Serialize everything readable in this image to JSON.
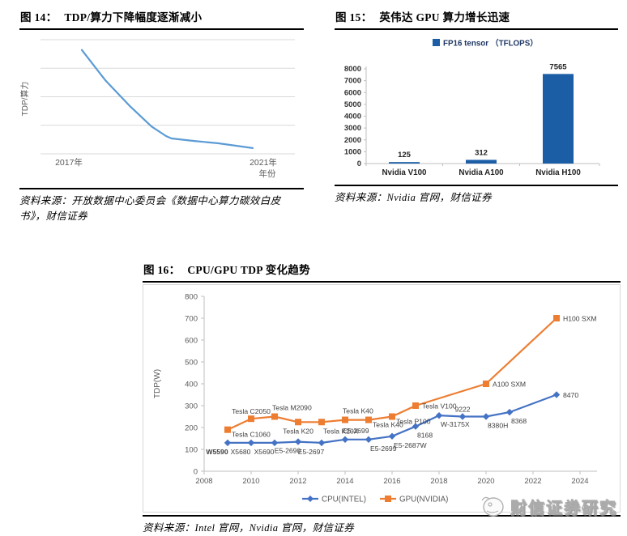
{
  "figures": [
    {
      "id": "fig14",
      "label": "图 14：",
      "title": "TDP/算力下降幅度逐渐减小",
      "source": "资料来源：开放数据中心委员会《数据中心算力碳效白皮书》，财信证券"
    },
    {
      "id": "fig15",
      "label": "图 15：",
      "title": "英伟达 GPU 算力增长迅速",
      "source": "资料来源：Nvidia 官网，财信证券"
    },
    {
      "id": "fig16",
      "label": "图 16：",
      "title": "CPU/GPU TDP 变化趋势",
      "source": "资料来源：Intel 官网，Nvidia 官网，财信证券"
    }
  ],
  "watermark": {
    "text": "财信证券研究"
  },
  "chart_data": [
    {
      "figure": "fig14",
      "type": "line",
      "title": "TDP/算力下降幅度逐渐减小",
      "ylabel": "TDP/算力",
      "xlabel": "年份",
      "x_tick_labels": [
        "2017年",
        "2021年"
      ],
      "x_range": [
        2017,
        2021
      ],
      "y_relative_range": [
        0,
        1
      ],
      "grid": true,
      "line_color": "#5B9BD5",
      "grid_color": "#d9d9d9",
      "points": [
        [
          2017,
          0.91
        ],
        [
          2017.55,
          0.645
        ],
        [
          2018.12,
          0.42
        ],
        [
          2018.63,
          0.24
        ],
        [
          2018.97,
          0.156
        ],
        [
          2019.1,
          0.135
        ],
        [
          2019.63,
          0.113
        ],
        [
          2020.2,
          0.092
        ],
        [
          2021,
          0.05
        ]
      ]
    },
    {
      "figure": "fig15",
      "type": "bar",
      "title": "英伟达 GPU 算力增长迅速",
      "legend": "FP16 tensor （TFLOPS）",
      "legend_position": "top",
      "categories": [
        "Nvidia V100",
        "Nvidia A100",
        "Nvidia H100"
      ],
      "values": [
        125,
        312,
        7565
      ],
      "ylim": [
        0,
        8000
      ],
      "y_tick_step": 1000,
      "grid": false,
      "bar_color": "#1B5EA6",
      "legend_text_color": "#1F3864",
      "axis_color": "#bfbfbf"
    },
    {
      "figure": "fig16",
      "type": "line",
      "title": "CPU/GPU TDP 变化趋势",
      "ylabel": "TDP(W)",
      "ylim": [
        0,
        800
      ],
      "y_tick_step": 100,
      "xlim": [
        2008,
        2024
      ],
      "x_tick_step": 2,
      "grid": false,
      "legend_position": "bottom",
      "axis_color": "#bfbfbf",
      "series": [
        {
          "name": "CPU(INTEL)",
          "color": "#4472C4",
          "marker": "diamond",
          "points": [
            {
              "x": 2009,
              "y": 130,
              "label": "W5590",
              "pos": "below-left",
              "bold": true
            },
            {
              "x": 2010,
              "y": 130,
              "label": "X5680",
              "pos": "below-left"
            },
            {
              "x": 2011,
              "y": 130,
              "label": "X5690",
              "pos": "below-left"
            },
            {
              "x": 2012,
              "y": 135,
              "label": "E5-2690",
              "pos": "below-left"
            },
            {
              "x": 2013,
              "y": 130,
              "label": "E5-2697",
              "pos": "below-left"
            },
            {
              "x": 2014,
              "y": 145,
              "label": "E5-2699",
              "pos": "above-right"
            },
            {
              "x": 2015,
              "y": 145,
              "label": "E5-2699",
              "pos": "below-right"
            },
            {
              "x": 2016,
              "y": 160,
              "label": "E5-2687W",
              "pos": "below-right"
            },
            {
              "x": 2017,
              "y": 205,
              "label": "8168",
              "pos": "below-right"
            },
            {
              "x": 2018,
              "y": 255,
              "label": "W-3175X",
              "pos": "below-right"
            },
            {
              "x": 2019,
              "y": 250,
              "label": "9222",
              "pos": "above"
            },
            {
              "x": 2020,
              "y": 250,
              "label": "8380H",
              "pos": "below-right"
            },
            {
              "x": 2021,
              "y": 270,
              "label": "8368",
              "pos": "below-right"
            },
            {
              "x": 2023,
              "y": 350,
              "label": "8470",
              "pos": "right"
            }
          ]
        },
        {
          "name": "GPU(NVIDIA)",
          "color": "#ED7D31",
          "marker": "square",
          "points": [
            {
              "x": 2009,
              "y": 190,
              "label": "Tesla C1060",
              "pos": "right-below"
            },
            {
              "x": 2010,
              "y": 240,
              "label": "Tesla C2050",
              "pos": "above"
            },
            {
              "x": 2011,
              "y": 250,
              "label": "Tesla M2090",
              "pos": "above-right"
            },
            {
              "x": 2012,
              "y": 225,
              "label": "Tesla K20",
              "pos": "below"
            },
            {
              "x": 2013,
              "y": 225,
              "label": "Tesla K20X",
              "pos": "below-right"
            },
            {
              "x": 2014,
              "y": 235,
              "label": "Tesla K40",
              "pos": "above-right"
            },
            {
              "x": 2015,
              "y": 235,
              "label": "Tesla K40",
              "pos": "right-below"
            },
            {
              "x": 2016,
              "y": 250,
              "label": "Tesla P100",
              "pos": "right-below"
            },
            {
              "x": 2017,
              "y": 300,
              "label": "Tesla V100",
              "pos": "right"
            },
            {
              "x": 2020,
              "y": 400,
              "label": "A100 SXM",
              "pos": "right"
            },
            {
              "x": 2023,
              "y": 700,
              "label": "H100 SXM",
              "pos": "right"
            }
          ]
        }
      ]
    }
  ]
}
